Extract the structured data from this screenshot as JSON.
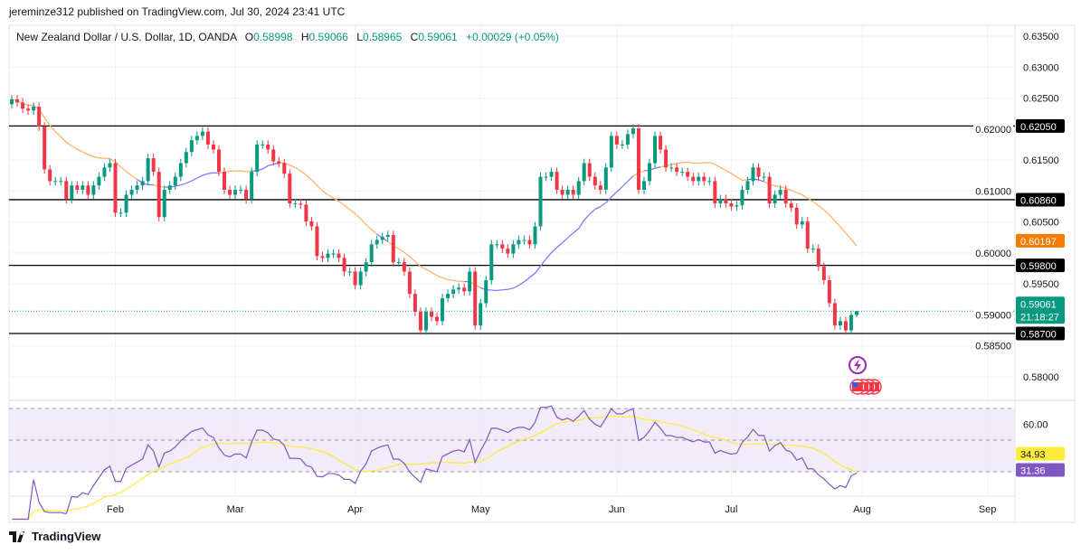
{
  "header": {
    "published": "jeremin​ze312 published on TradingView.com, Jul 30, 2024 23:41 UTC",
    "symbol": "New Zealand Dollar / U.S. Dollar, 1D, OANDA",
    "o_label": "O",
    "o": "0.58998",
    "h_label": "H",
    "h": "0.59066",
    "l_label": "L",
    "l": "0.58965",
    "c_label": "C",
    "c": "0.59061",
    "change": "+0.00029 (+0.05%)"
  },
  "colors": {
    "up": "#089981",
    "down": "#f23645",
    "ma_above": "#ffb26b",
    "ma_below": "#7b7bff",
    "rsi": "#7e57c2",
    "rsi_ma": "#ffeb3b",
    "rsi_band": "#ede7f6"
  },
  "chart_data": {
    "type": "candlestick",
    "price_axis": {
      "min": 0.58,
      "max": 0.635,
      "ticks": [
        "0.63500",
        "0.63000",
        "0.62500",
        "0.62000",
        "0.61500",
        "0.61000",
        "0.60500",
        "0.60000",
        "0.59500",
        "0.59000",
        "0.58500",
        "0.58000"
      ]
    },
    "closes": [
      0.6248,
      0.6243,
      0.6233,
      0.623,
      0.6236,
      0.6204,
      0.6135,
      0.6116,
      0.6116,
      0.6116,
      0.6087,
      0.6109,
      0.6102,
      0.6109,
      0.6094,
      0.6109,
      0.6123,
      0.6138,
      0.6145,
      0.6065,
      0.6065,
      0.6094,
      0.6102,
      0.6109,
      0.6116,
      0.6153,
      0.6131,
      0.6058,
      0.6102,
      0.6109,
      0.6123,
      0.6145,
      0.6163,
      0.6182,
      0.6189,
      0.6196,
      0.6175,
      0.6167,
      0.6131,
      0.6102,
      0.6094,
      0.6102,
      0.6102,
      0.6087,
      0.6131,
      0.6175,
      0.6175,
      0.6167,
      0.6148,
      0.6145,
      0.6128,
      0.608,
      0.608,
      0.6078,
      0.6051,
      0.6043,
      0.5995,
      0.5992,
      0.5999,
      0.5999,
      0.5992,
      0.597,
      0.597,
      0.5948,
      0.597,
      0.5985,
      0.6014,
      0.6021,
      0.6026,
      0.6029,
      0.5985,
      0.5985,
      0.597,
      0.5934,
      0.5905,
      0.5875,
      0.5905,
      0.5897,
      0.589,
      0.5927,
      0.5934,
      0.5941,
      0.5944,
      0.5938,
      0.597,
      0.5883,
      0.5919,
      0.5956,
      0.6014,
      0.6014,
      0.6007,
      0.5999,
      0.6014,
      0.6021,
      0.6021,
      0.6014,
      0.6043,
      0.6123,
      0.6123,
      0.6131,
      0.6102,
      0.6094,
      0.6102,
      0.6094,
      0.6116,
      0.6145,
      0.6123,
      0.6109,
      0.6102,
      0.6138,
      0.6189,
      0.6175,
      0.6175,
      0.6192,
      0.6201,
      0.6102,
      0.6116,
      0.6145,
      0.6189,
      0.6167,
      0.6138,
      0.6138,
      0.6131,
      0.6131,
      0.6123,
      0.6116,
      0.6123,
      0.6116,
      0.6116,
      0.608,
      0.6087,
      0.608,
      0.6075,
      0.6077,
      0.6102,
      0.6116,
      0.6138,
      0.6123,
      0.6123,
      0.608,
      0.6094,
      0.6102,
      0.608,
      0.6073,
      0.6046,
      0.6051,
      0.6007,
      0.6007,
      0.5978,
      0.5956,
      0.5919,
      0.5883,
      0.589,
      0.5875,
      0.59,
      0.59061
    ],
    "first_open": 0.624,
    "last_candle": {
      "o": 0.58998,
      "h": 0.59066,
      "l": 0.58965,
      "c": 0.59061
    },
    "months": [
      {
        "label": "Feb",
        "bar": 19
      },
      {
        "label": "Mar",
        "bar": 41
      },
      {
        "label": "Apr",
        "bar": 63
      },
      {
        "label": "May",
        "bar": 86
      },
      {
        "label": "Jun",
        "bar": 111
      },
      {
        "label": "Jul",
        "bar": 132
      },
      {
        "label": "Aug",
        "bar": 156
      },
      {
        "label": "Sep",
        "bar": 179
      }
    ],
    "horizontal_levels": [
      {
        "value": 0.6205,
        "label": "0.62050"
      },
      {
        "value": 0.6086,
        "label": "0.60860"
      },
      {
        "value": 0.598,
        "label": "0.59800"
      },
      {
        "value": 0.587,
        "label": "0.58700"
      }
    ],
    "ma": {
      "period": 20,
      "last_label": "0.60197"
    },
    "current_price": {
      "value": 0.59061,
      "label": "0.59061",
      "countdown": "21:18:27"
    },
    "rsi": {
      "period": 14,
      "ma_period": 14,
      "band_upper": 70,
      "band_lower": 30,
      "tick": "60.00",
      "ma_last": "34.93",
      "rsi_last": "31.36"
    }
  },
  "events": [
    {
      "icon": "lightning-icon"
    },
    {
      "icon": "us-flag-icon"
    }
  ],
  "footer": {
    "brand": "TradingView"
  }
}
